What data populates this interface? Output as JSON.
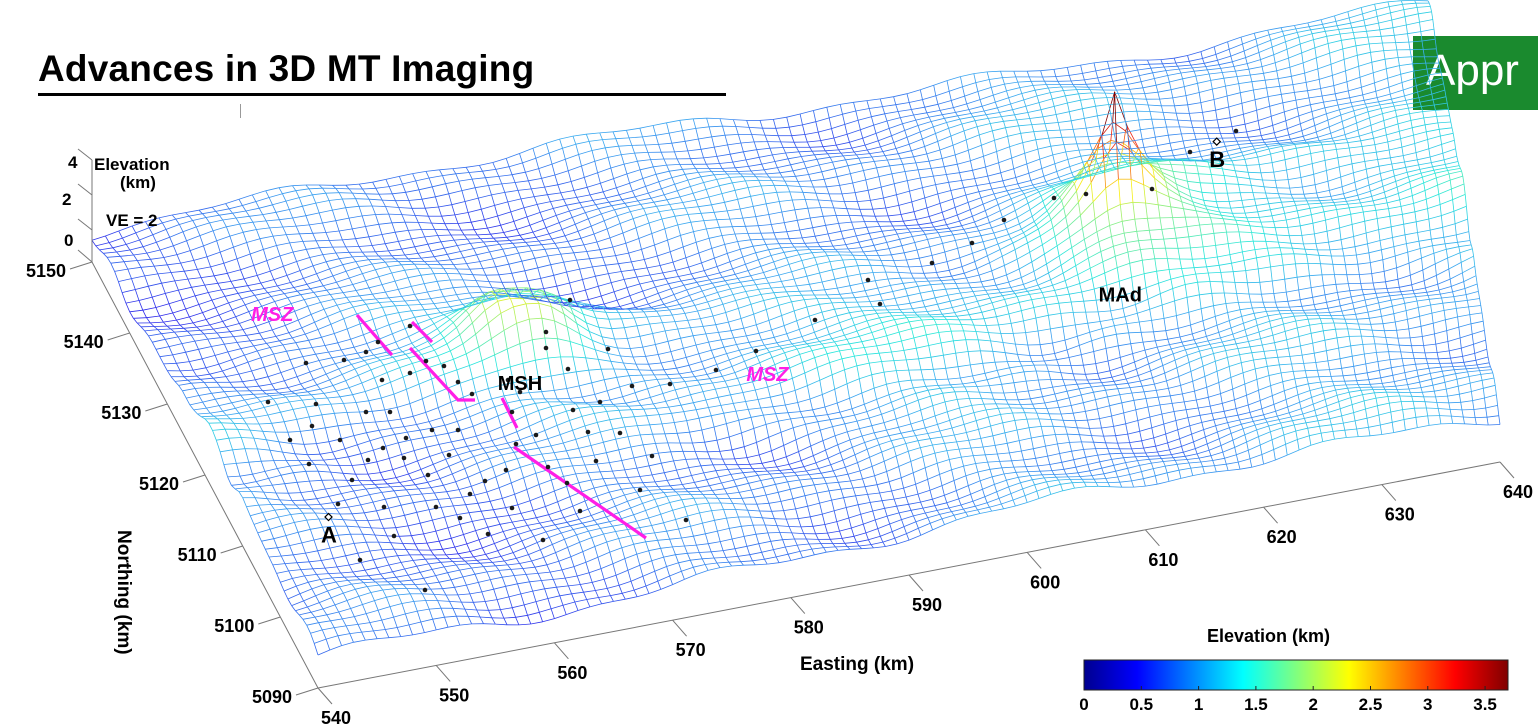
{
  "header": {
    "title": "Advances in 3D MT Imaging",
    "badge_text": "Appr"
  },
  "colors": {
    "mesh_low": "#3a2ee6",
    "mesh_mid": "#33e6d6",
    "mesh_high": "#c22a1e",
    "fault": "#ff1ee6",
    "badge": "#1a8a2e"
  },
  "chart_data": {
    "type": "surface",
    "xlabel": "Easting (km)",
    "ylabel": "Northing (km)",
    "zlabel": "Elevation (km)",
    "vertical_exaggeration_label": "VE = 2",
    "x_ticks": [
      "540",
      "550",
      "560",
      "570",
      "580",
      "590",
      "600",
      "610",
      "620",
      "630",
      "640"
    ],
    "y_ticks": [
      "5090",
      "5100",
      "5110",
      "5120",
      "5130",
      "5140",
      "5150"
    ],
    "z_ticks": [
      "4",
      "2",
      "0"
    ],
    "xlim": [
      540,
      640
    ],
    "ylim": [
      5090,
      5150
    ],
    "colorbar": {
      "label": "Elevation (km)",
      "range": [
        0,
        3.7
      ],
      "ticks": [
        "0",
        "0.5",
        "1",
        "1.5",
        "2",
        "2.5",
        "3",
        "3.5"
      ]
    },
    "annotations": [
      {
        "text": "MSH",
        "kind": "volcano",
        "easting": 566,
        "northing": 5124
      },
      {
        "text": "MAd",
        "kind": "volcano",
        "easting": 613,
        "northing": 5122
      },
      {
        "text": "MSZ",
        "kind": "fault-label",
        "easting": 549,
        "northing": 5139
      },
      {
        "text": "MSZ",
        "kind": "fault-label",
        "easting": 583,
        "northing": 5120
      },
      {
        "text": "A",
        "kind": "profile-end",
        "easting": 547,
        "northing": 5110
      },
      {
        "text": "B",
        "kind": "profile-end",
        "easting": 623,
        "northing": 5140
      }
    ]
  }
}
